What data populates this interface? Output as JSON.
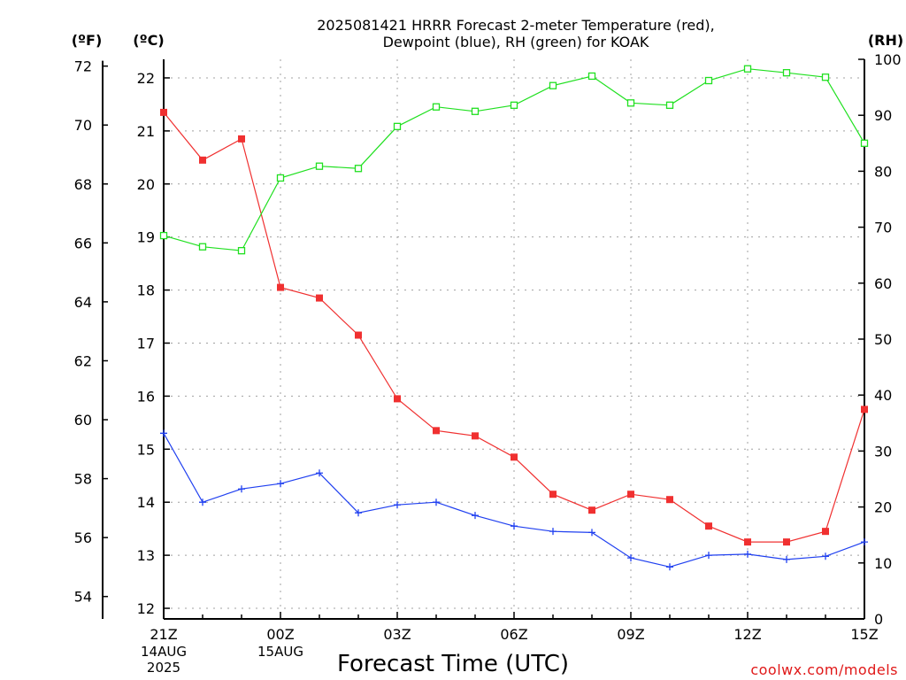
{
  "chart_data": {
    "type": "line",
    "title": "2025081421 HRRR Forecast 2-meter Temperature (red),",
    "subtitle": "Dewpoint (blue), RH (green) for KOAK",
    "xlabel": "Forecast Time (UTC)",
    "credit": "coolwx.com/models",
    "units": {
      "fahrenheit": "(ºF)",
      "celsius": "(ºC)",
      "rh": "(RH)"
    },
    "x": [
      "21Z",
      "22Z",
      "23Z",
      "00Z",
      "01Z",
      "02Z",
      "03Z",
      "04Z",
      "05Z",
      "06Z",
      "07Z",
      "08Z",
      "09Z",
      "10Z",
      "11Z",
      "12Z",
      "13Z",
      "14Z",
      "15Z"
    ],
    "x_ticks": [
      {
        "label": "21Z",
        "sub": [
          "14AUG",
          "2025"
        ]
      },
      {
        "label": "00Z",
        "sub": [
          "15AUG"
        ]
      },
      {
        "label": "03Z",
        "sub": []
      },
      {
        "label": "06Z",
        "sub": []
      },
      {
        "label": "09Z",
        "sub": []
      },
      {
        "label": "12Z",
        "sub": []
      },
      {
        "label": "15Z",
        "sub": []
      }
    ],
    "celsius_range": [
      11.8,
      22.35
    ],
    "fahrenheit_ticks": [
      54,
      56,
      58,
      60,
      62,
      64,
      66,
      68,
      70,
      72
    ],
    "celsius_ticks": [
      12,
      13,
      14,
      15,
      16,
      17,
      18,
      19,
      20,
      21,
      22
    ],
    "rh_range": [
      0,
      100
    ],
    "rh_ticks": [
      0,
      10,
      20,
      30,
      40,
      50,
      60,
      70,
      80,
      90,
      100
    ],
    "grid": true,
    "series": [
      {
        "name": "Temperature",
        "axis": "celsius",
        "color": "#f03030",
        "marker": "filled-square",
        "values": [
          21.35,
          20.45,
          20.85,
          18.05,
          17.85,
          17.15,
          15.95,
          15.35,
          15.25,
          14.85,
          14.15,
          13.85,
          14.15,
          14.05,
          13.55,
          13.25,
          13.25,
          13.45,
          15.75
        ]
      },
      {
        "name": "Dewpoint",
        "axis": "celsius",
        "color": "#2040f0",
        "marker": "plus",
        "values": [
          15.3,
          14.0,
          14.25,
          14.35,
          14.55,
          13.8,
          13.95,
          14.0,
          13.75,
          13.55,
          13.45,
          13.43,
          12.95,
          12.78,
          13.0,
          13.02,
          12.92,
          12.98,
          13.25
        ]
      },
      {
        "name": "RH",
        "axis": "rh",
        "color": "#20e020",
        "marker": "open-square",
        "values": [
          68.5,
          66.5,
          65.8,
          78.8,
          80.9,
          80.5,
          88.0,
          91.5,
          90.7,
          91.8,
          95.3,
          97.0,
          92.2,
          91.8,
          96.2,
          98.3,
          97.6,
          96.8,
          85.0
        ]
      }
    ]
  }
}
